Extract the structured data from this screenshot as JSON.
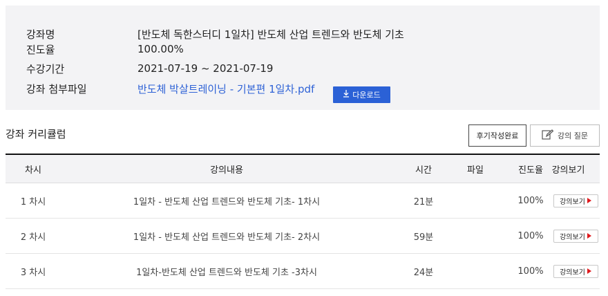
{
  "course_info": {
    "rows": [
      {
        "label": "강좌명",
        "value": "[반도체 독한스터디 1일차] 반도체 산업 트렌드와 반도체 기초"
      },
      {
        "label": "진도율",
        "value": "100.00%"
      },
      {
        "label": "수강기간",
        "value": "2021-07-19 ~ 2021-07-19"
      },
      {
        "label": "강좌 첨부파일",
        "value": "반도체 박살트레이닝 - 기본편 1일차.pdf"
      }
    ],
    "download_label": "다운로드",
    "download_icon": "download-icon"
  },
  "curriculum": {
    "title": "강좌 커리큘럼",
    "review_button": "후기작성완료",
    "question_button": "강의 질문",
    "question_icon": "edit-icon",
    "columns": [
      "차시",
      "강의내용",
      "시간",
      "파일",
      "진도율",
      "강의보기"
    ],
    "rows": [
      {
        "no": "1 차시",
        "content": "1일차 - 반도체 산업 트렌드와 반도체 기초- 1차시",
        "time": "21분",
        "file": "",
        "progress": "100%",
        "watch": "강의보기"
      },
      {
        "no": "2 차시",
        "content": "1일차 - 반도체 산업 트렌드와 반도체 기초- 2차시",
        "time": "59분",
        "file": "",
        "progress": "100%",
        "watch": "강의보기"
      },
      {
        "no": "3 차시",
        "content": "1일차-반도체 산업 트렌드와 반도체 기초 -3차시",
        "time": "24분",
        "file": "",
        "progress": "100%",
        "watch": "강의보기"
      }
    ]
  },
  "colors": {
    "accent": "#2b61d6",
    "link": "#2e62d6",
    "play": "#e0191d",
    "panel": "#f3f3f5"
  }
}
